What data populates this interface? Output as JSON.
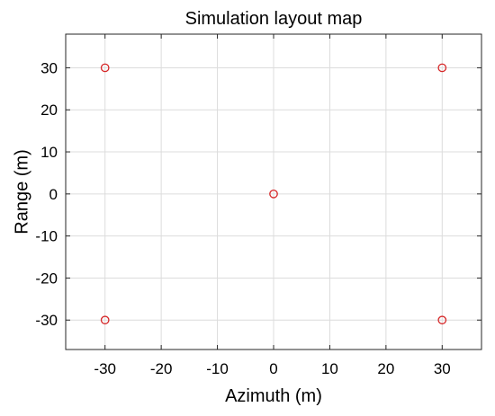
{
  "chart_data": {
    "type": "scatter",
    "title": "Simulation layout map",
    "xlabel": "Azimuth (m)",
    "ylabel": "Range (m)",
    "xlim": [
      -37,
      37
    ],
    "ylim": [
      -37,
      38
    ],
    "xticks": [
      -30,
      -20,
      -10,
      0,
      10,
      20,
      30
    ],
    "yticks": [
      -30,
      -20,
      -10,
      0,
      10,
      20,
      30
    ],
    "grid": true,
    "marker": "circle-open",
    "colors": {
      "marker": "#d62728",
      "grid": "#dcdcdc",
      "axis": "#262626"
    },
    "series": [
      {
        "x": [
          -30,
          30,
          0,
          -30,
          30
        ],
        "y": [
          30,
          30,
          0,
          -30,
          -30
        ]
      }
    ]
  }
}
